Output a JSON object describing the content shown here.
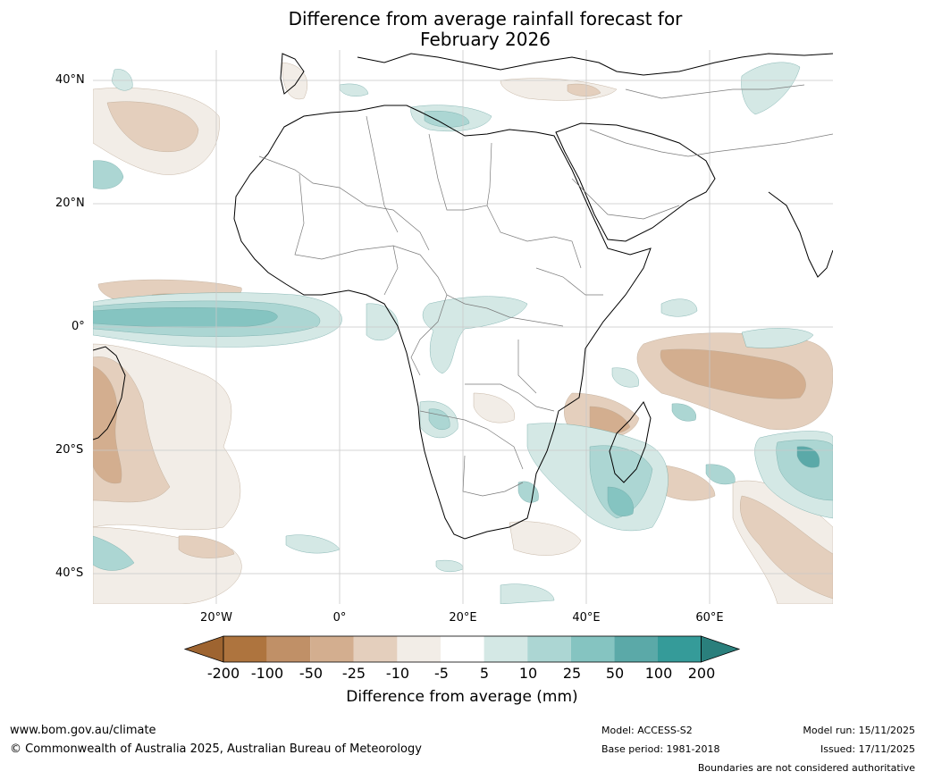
{
  "title_line1": "Difference from average rainfall forecast for",
  "title_line2": "February 2026",
  "lat_labels": [
    "40°N",
    "20°N",
    "0°",
    "20°S",
    "40°S"
  ],
  "lon_labels": [
    "20°W",
    "0°",
    "20°E",
    "40°E",
    "60°E"
  ],
  "colorbar": {
    "ticks": [
      "-200",
      "-100",
      "-50",
      "-25",
      "-10",
      "-5",
      "5",
      "10",
      "25",
      "50",
      "100",
      "200"
    ],
    "colors": [
      "#9e6430",
      "#ae743e",
      "#c09067",
      "#d3ae8f",
      "#e4cfbd",
      "#f2ede7",
      "#ffffff",
      "#d4e8e5",
      "#acd6d3",
      "#85c4c1",
      "#5ba9a8",
      "#359b99",
      "#2a7f7c"
    ],
    "label": "Difference from average (mm)"
  },
  "footer": {
    "website": "www.bom.gov.au/climate",
    "copyright": "© Commonwealth of Australia 2025, Australian Bureau of Meteorology",
    "model": "Model: ACCESS-S2",
    "base_period": "Base period: 1981-2018",
    "model_run": "Model run: 15/11/2025",
    "issued": "Issued: 17/11/2025",
    "disclaimer": "Boundaries are not considered authoritative"
  }
}
